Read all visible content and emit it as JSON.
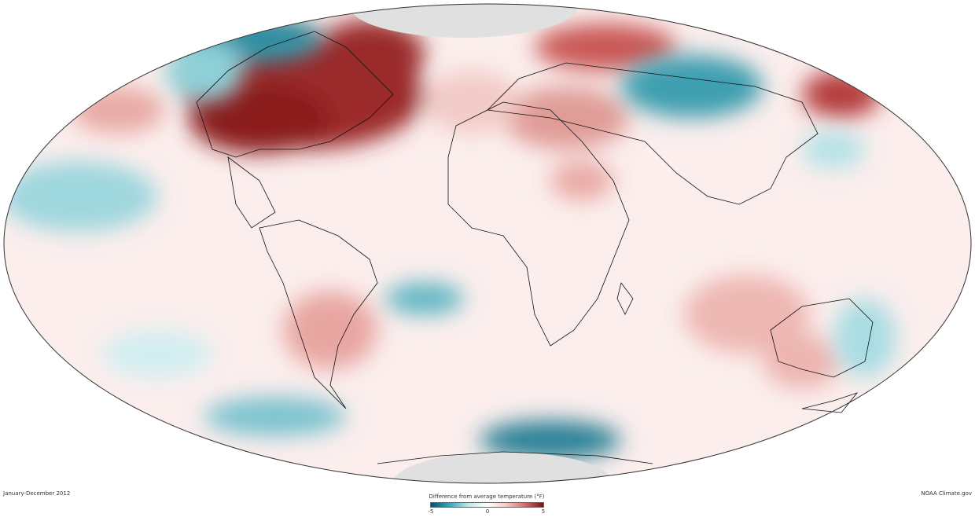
{
  "map": {
    "period": "January-December 2012",
    "credit": "NOAA Climate.gov",
    "legend": {
      "title": "Difference from average temperature (°F)",
      "min_label": "-5",
      "mid_label": "0",
      "max_label": "5",
      "min": -5,
      "max": 5,
      "colors": [
        "#0b4f6c",
        "#3aa6b8",
        "#bfe6ea",
        "#ffffff",
        "#f4c9c4",
        "#d2706e",
        "#6e1518"
      ]
    },
    "no_data_color": "#e0e0e0"
  }
}
